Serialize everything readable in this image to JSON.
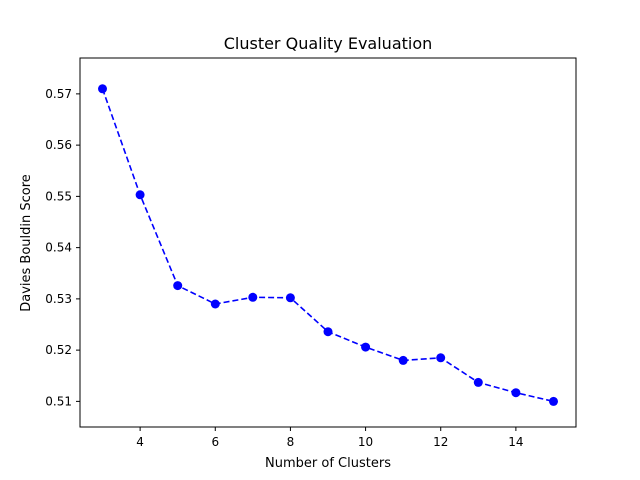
{
  "chart_data": {
    "type": "line",
    "title": "Cluster Quality Evaluation",
    "xlabel": "Number of Clusters",
    "ylabel": "Davies Bouldin Score",
    "xlim": [
      2.4,
      15.6
    ],
    "ylim": [
      0.505,
      0.577
    ],
    "xticks": [
      4,
      6,
      8,
      10,
      12,
      14
    ],
    "yticks": [
      0.51,
      0.52,
      0.53,
      0.54,
      0.55,
      0.56,
      0.57
    ],
    "grid": false,
    "series": [
      {
        "color": "#0000ff",
        "line_style": "dashed",
        "marker": "circle",
        "x": [
          3,
          4,
          5,
          6,
          7,
          8,
          9,
          10,
          11,
          12,
          13,
          14,
          15
        ],
        "y": [
          0.571,
          0.5503,
          0.5326,
          0.529,
          0.5303,
          0.5302,
          0.5236,
          0.5206,
          0.518,
          0.5185,
          0.5137,
          0.5117,
          0.51
        ]
      }
    ]
  }
}
